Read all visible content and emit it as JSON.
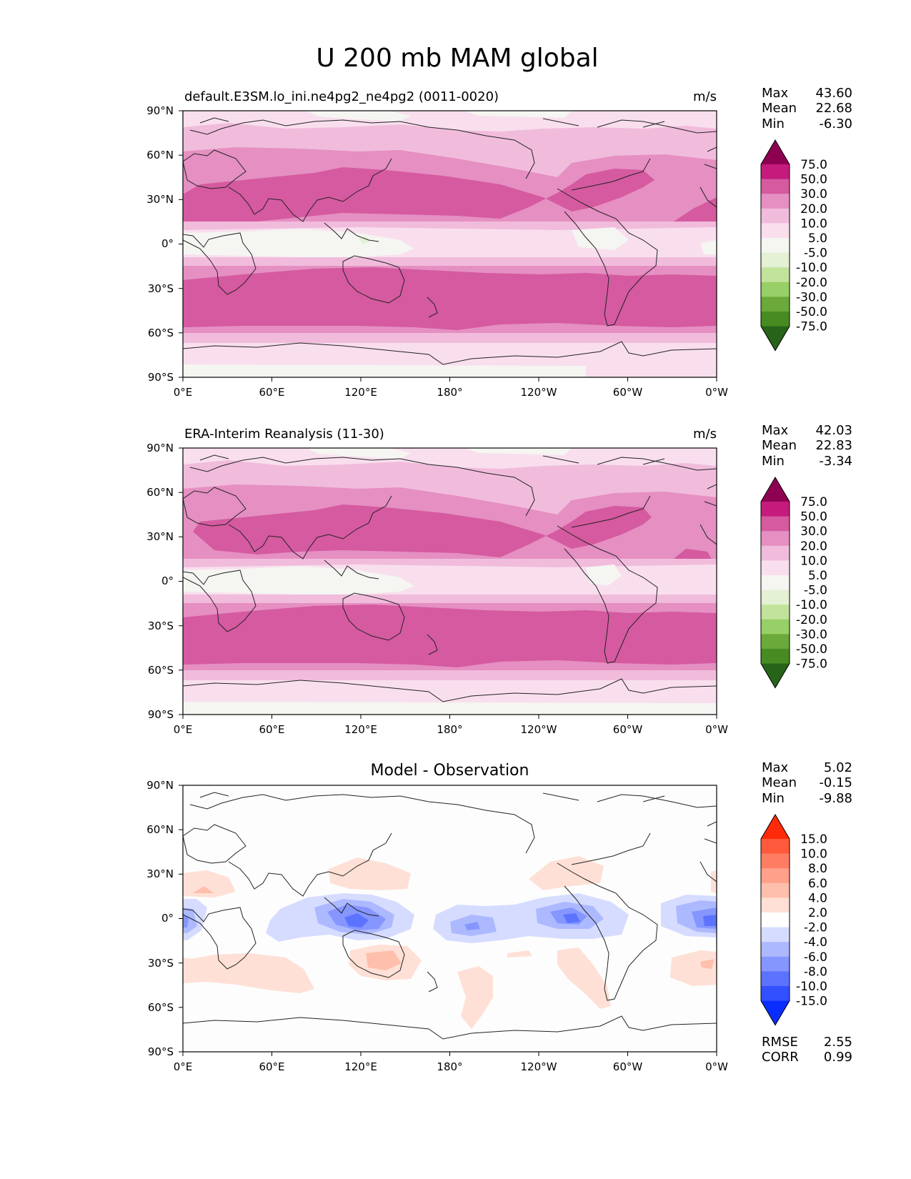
{
  "title": "U 200 mb MAM global",
  "lon_ticks": [
    "0°E",
    "60°E",
    "120°E",
    "180°",
    "120°W",
    "60°W",
    "0°W"
  ],
  "lat_ticks": [
    "90°N",
    "60°N",
    "30°N",
    "0°",
    "30°S",
    "60°S",
    "90°S"
  ],
  "panels": [
    {
      "id": "test",
      "title_left": "default.E3SM.lo_ini.ne4pg2_ne4pg2 (0011-0020)",
      "title_center": "",
      "units": "m/s",
      "stats": [
        {
          "label": "Max",
          "value": "43.60"
        },
        {
          "label": "Mean",
          "value": "22.68"
        },
        {
          "label": "Min",
          "value": "-6.30"
        }
      ],
      "colorbar": "abs",
      "extra_stats": []
    },
    {
      "id": "ref",
      "title_left": "ERA-Interim Reanalysis (11-30)",
      "title_center": "",
      "units": "m/s",
      "stats": [
        {
          "label": "Max",
          "value": "42.03"
        },
        {
          "label": "Mean",
          "value": "22.83"
        },
        {
          "label": "Min",
          "value": "-3.34"
        }
      ],
      "colorbar": "abs",
      "extra_stats": []
    },
    {
      "id": "diff",
      "title_left": "",
      "title_center": "Model - Observation",
      "units": "",
      "stats": [
        {
          "label": "Max",
          "value": "5.02"
        },
        {
          "label": "Mean",
          "value": "-0.15"
        },
        {
          "label": "Min",
          "value": "-9.88"
        }
      ],
      "colorbar": "diff",
      "extra_stats": [
        {
          "label": "RMSE",
          "value": "2.55"
        },
        {
          "label": "CORR",
          "value": "0.99"
        }
      ]
    }
  ],
  "colorbars": {
    "abs": {
      "labels": [
        "75.0",
        "50.0",
        "30.0",
        "20.0",
        "10.0",
        "5.0",
        "-5.0",
        "-10.0",
        "-20.0",
        "-30.0",
        "-50.0",
        "-75.0"
      ],
      "colors": [
        "#8e0152",
        "#c51b7d",
        "#d55aa0",
        "#e58fc2",
        "#f1bcdc",
        "#f9dfee",
        "#f5f5f2",
        "#e4f1d5",
        "#c2e39c",
        "#98cf66",
        "#6aa93a",
        "#478b22",
        "#276419"
      ]
    },
    "diff": {
      "labels": [
        "15.0",
        "10.0",
        "8.0",
        "6.0",
        "4.0",
        "2.0",
        "-2.0",
        "-4.0",
        "-6.0",
        "-8.0",
        "-10.0",
        "-15.0"
      ],
      "colors": [
        "#ff2a0a",
        "#ff5a3c",
        "#ff7e63",
        "#ffa08a",
        "#ffbfad",
        "#ffe0d6",
        "#ffffff",
        "#d6dcff",
        "#adb9ff",
        "#8596ff",
        "#5c73ff",
        "#3350ff",
        "#0a2dff"
      ]
    }
  }
}
